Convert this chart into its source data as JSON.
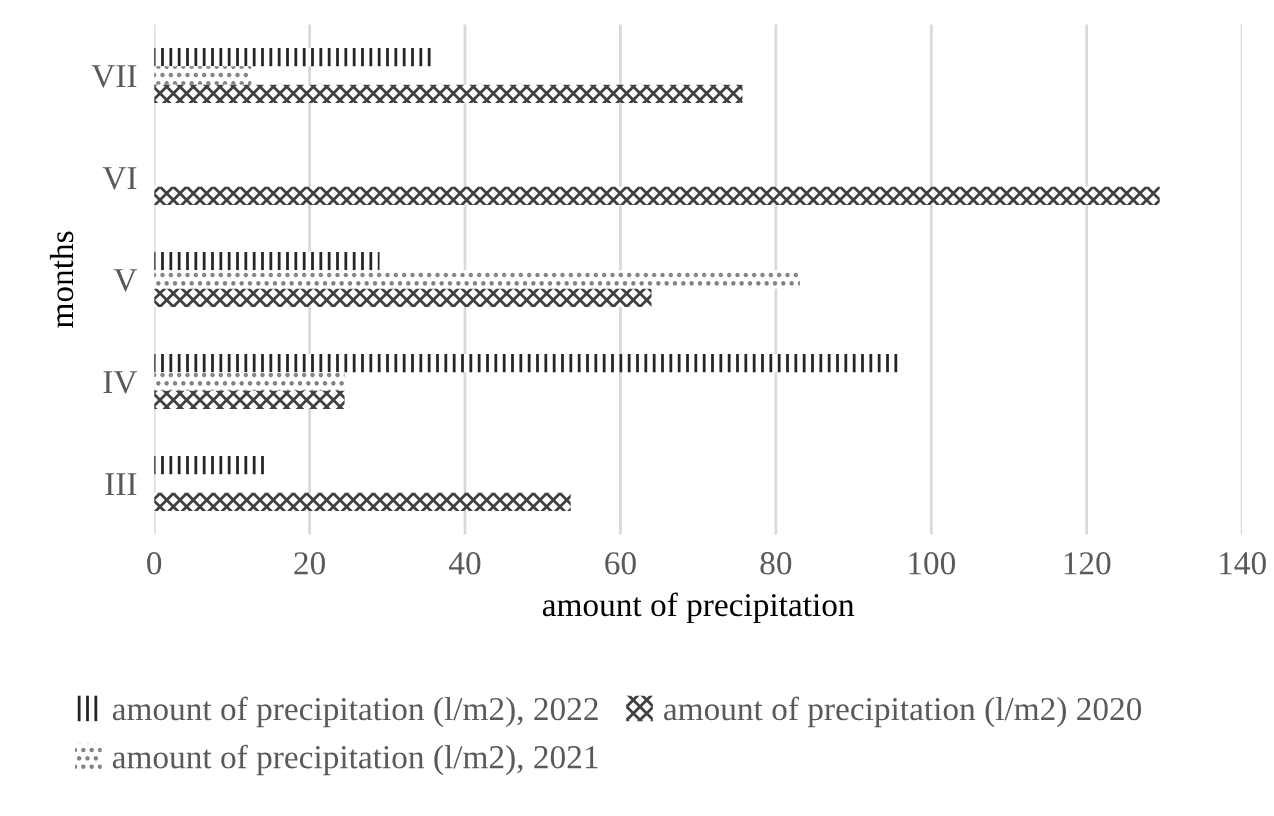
{
  "chart_data": {
    "type": "bar",
    "orientation": "horizontal",
    "xlabel": "amount of precipitation",
    "ylabel": "months",
    "categories": [
      "VII",
      "VI",
      "V",
      "IV",
      "III"
    ],
    "series": [
      {
        "name": "amount of precipitation (l/m2), 2022",
        "color": "#262626",
        "values": [
          35.7,
          null,
          29.0,
          96.2,
          14.6
        ]
      },
      {
        "name": "amount of precipitation (l/m2), 2021",
        "color": "#7f7f7f",
        "values": [
          12.5,
          null,
          83.1,
          24.5,
          null
        ]
      },
      {
        "name": "amount of precipitation (l/m2) 2020",
        "color": "#404040",
        "values": [
          75.7,
          129.4,
          64.0,
          24.5,
          53.6
        ]
      }
    ],
    "xlim": [
      0,
      140
    ],
    "xticks": [
      0,
      20,
      40,
      60,
      80,
      100,
      120,
      140
    ],
    "grid": "x",
    "legend": "bottom"
  }
}
